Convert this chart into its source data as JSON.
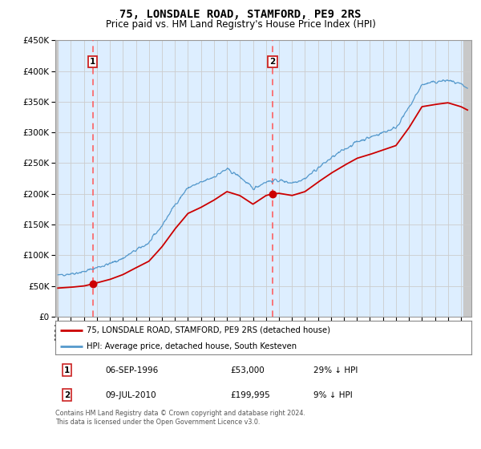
{
  "title": "75, LONSDALE ROAD, STAMFORD, PE9 2RS",
  "subtitle": "Price paid vs. HM Land Registry's House Price Index (HPI)",
  "legend_line1": "75, LONSDALE ROAD, STAMFORD, PE9 2RS (detached house)",
  "legend_line2": "HPI: Average price, detached house, South Kesteven",
  "annotation1_label": "1",
  "annotation1_date": "06-SEP-1996",
  "annotation1_price": "£53,000",
  "annotation1_hpi": "29% ↓ HPI",
  "annotation2_label": "2",
  "annotation2_date": "09-JUL-2010",
  "annotation2_price": "£199,995",
  "annotation2_hpi": "9% ↓ HPI",
  "footer": "Contains HM Land Registry data © Crown copyright and database right 2024.\nThis data is licensed under the Open Government Licence v3.0.",
  "ylim": [
    0,
    450000
  ],
  "yticks": [
    0,
    50000,
    100000,
    150000,
    200000,
    250000,
    300000,
    350000,
    400000,
    450000
  ],
  "yticklabels": [
    "£0",
    "£50K",
    "£100K",
    "£150K",
    "£200K",
    "£250K",
    "£300K",
    "£350K",
    "£400K",
    "£450K"
  ],
  "grid_color": "#cccccc",
  "bg_color": "#ddeeff",
  "red_line_color": "#cc0000",
  "blue_line_color": "#5599cc",
  "vline_color": "#ff5555",
  "sale1_x": 1996.67,
  "sale1_y": 53000,
  "sale2_x": 2010.52,
  "sale2_y": 199995,
  "xmin": 1993.8,
  "xmax": 2025.8,
  "hpi_anchors": [
    [
      1994.0,
      68000
    ],
    [
      1995.0,
      70000
    ],
    [
      1996.0,
      73000
    ],
    [
      1997.0,
      80000
    ],
    [
      1998.0,
      86000
    ],
    [
      1999.0,
      95000
    ],
    [
      2000.0,
      108000
    ],
    [
      2001.0,
      120000
    ],
    [
      2002.0,
      148000
    ],
    [
      2003.0,
      182000
    ],
    [
      2004.0,
      210000
    ],
    [
      2005.0,
      218000
    ],
    [
      2006.0,
      228000
    ],
    [
      2007.0,
      240000
    ],
    [
      2008.0,
      228000
    ],
    [
      2009.0,
      208000
    ],
    [
      2010.0,
      220000
    ],
    [
      2011.0,
      222000
    ],
    [
      2012.0,
      218000
    ],
    [
      2013.0,
      225000
    ],
    [
      2014.0,
      242000
    ],
    [
      2015.0,
      258000
    ],
    [
      2016.0,
      272000
    ],
    [
      2017.0,
      285000
    ],
    [
      2018.0,
      292000
    ],
    [
      2019.0,
      300000
    ],
    [
      2020.0,
      308000
    ],
    [
      2021.0,
      340000
    ],
    [
      2022.0,
      378000
    ],
    [
      2023.0,
      382000
    ],
    [
      2024.0,
      385000
    ],
    [
      2025.0,
      378000
    ],
    [
      2025.5,
      372000
    ]
  ]
}
